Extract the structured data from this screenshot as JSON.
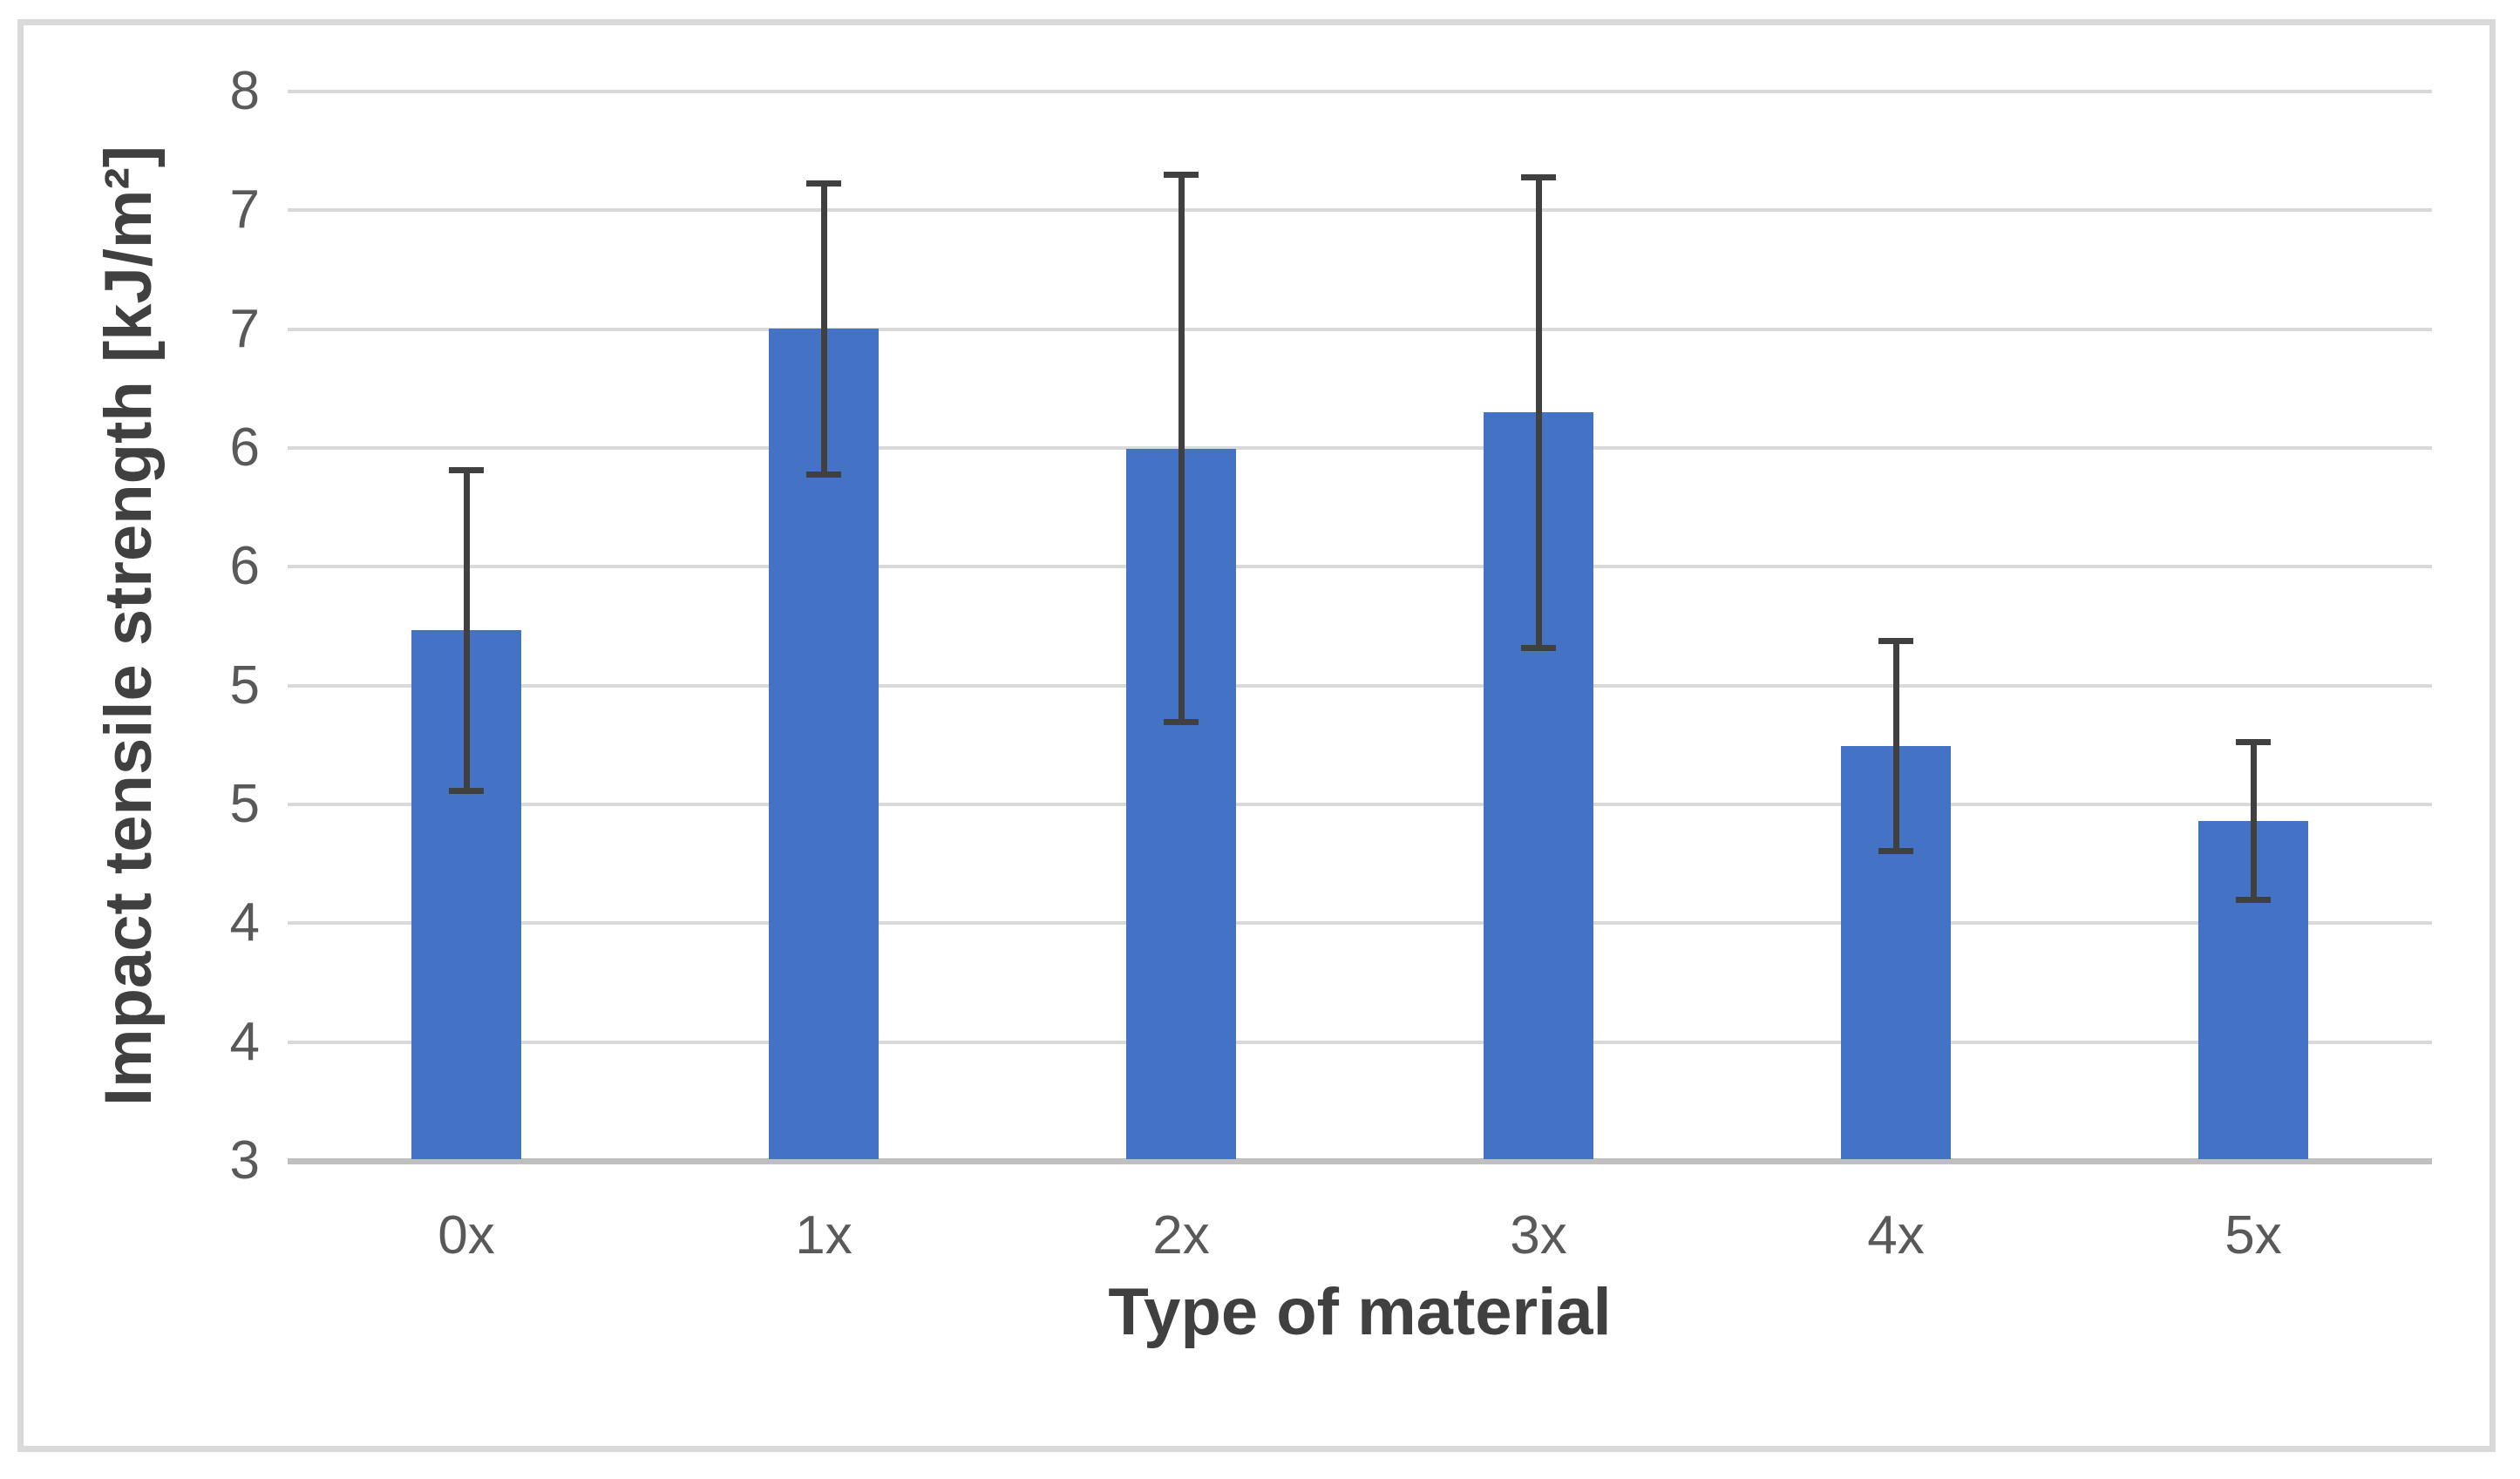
{
  "chart_data": {
    "type": "bar",
    "title": "",
    "xlabel": "Type of material",
    "ylabel": "Impact tensile strength [kJ/m²]",
    "categories": [
      "0x",
      "1x",
      "2x",
      "3x",
      "4x",
      "5x"
    ],
    "series": [
      {
        "name": "Impact tensile strength",
        "values": [
          5.48,
          6.89,
          6.33,
          6.5,
          4.94,
          4.59
        ],
        "error_plus": [
          0.75,
          0.68,
          1.28,
          1.1,
          0.49,
          0.37
        ],
        "error_minus": [
          0.75,
          0.68,
          1.28,
          1.1,
          0.49,
          0.37
        ]
      }
    ],
    "ylim": [
      3,
      8
    ],
    "y_gridline_values": [
      8.0,
      7.44,
      6.89,
      6.33,
      5.78,
      5.22,
      4.67,
      4.11,
      3.56,
      3.0
    ],
    "y_tick_display_labels": [
      "8",
      "7",
      "7",
      "6",
      "6",
      "5",
      "5",
      "4",
      "4",
      "3"
    ],
    "grid": true,
    "legend": false,
    "colors": {
      "bar": "#4472C4",
      "error_bar": "#404040",
      "gridline": "#D9D9D9",
      "axis_line": "#BFBFBF",
      "tick_label": "#595959",
      "axis_title": "#404040",
      "frame_border": "#D9D9D9",
      "background": "#FFFFFF"
    }
  }
}
